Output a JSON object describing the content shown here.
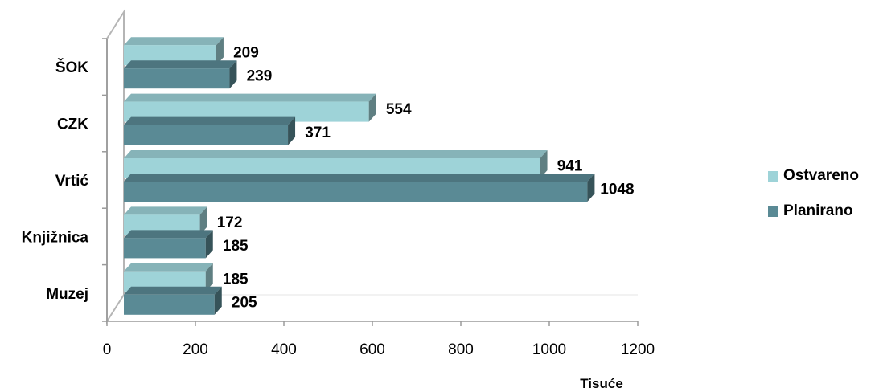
{
  "chart_data": {
    "type": "bar",
    "orientation": "horizontal",
    "categories": [
      "ŠOK",
      "CZK",
      "Vrtić",
      "Knjižnica",
      "Muzej"
    ],
    "series": [
      {
        "name": "Ostvareno",
        "values": [
          209,
          554,
          941,
          172,
          185
        ],
        "color": "#9ed3d8"
      },
      {
        "name": "Planirano",
        "values": [
          239,
          371,
          1048,
          185,
          205
        ],
        "color": "#5a8a95"
      }
    ],
    "xlabel": "Tisuće",
    "ylabel": "",
    "xlim": [
      0,
      1200
    ],
    "xticks": [
      "0",
      "200",
      "400",
      "600",
      "800",
      "1000",
      "1200"
    ],
    "grid": false,
    "legend_position": "right",
    "style": "3d"
  }
}
